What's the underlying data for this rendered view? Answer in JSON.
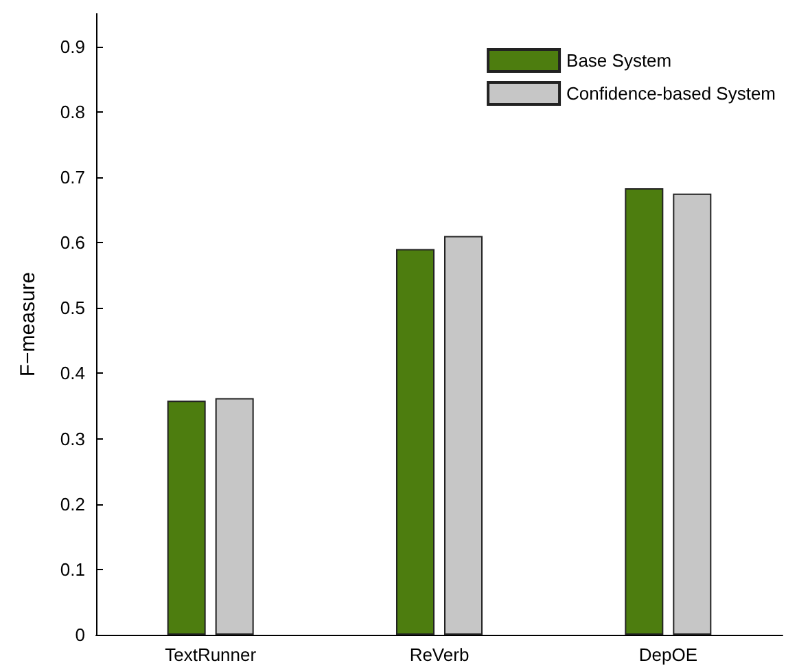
{
  "chart_data": {
    "type": "bar",
    "ylabel": "F−measure",
    "categories": [
      "TextRunner",
      "ReVerb",
      "DepOE"
    ],
    "series": [
      {
        "name": "Base System",
        "color": "#4d7d0f",
        "values": [
          0.358,
          0.59,
          0.683
        ]
      },
      {
        "name": "Confidence-based System",
        "color": "#c6c6c6",
        "values": [
          0.362,
          0.61,
          0.675
        ]
      }
    ],
    "ylim": [
      0,
      0.95
    ],
    "yticks": [
      0,
      0.1,
      0.2,
      0.3,
      0.4,
      0.5,
      0.6,
      0.7,
      0.8,
      0.9
    ],
    "grid": false,
    "legend": "top right"
  }
}
